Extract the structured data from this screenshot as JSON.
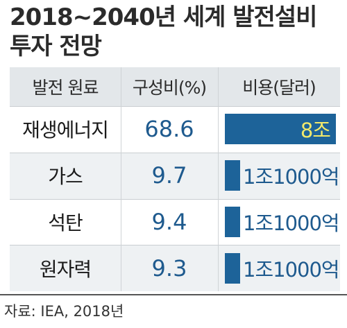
{
  "title": {
    "line1": "2018~2040년 세계 발전설비",
    "line2": "투자 전망"
  },
  "source": "자료: IEA, 2018년",
  "colors": {
    "bar": "#1d6399",
    "header_bg": "#e3e7ea",
    "band_bg": "#eef1f3",
    "value_text": "#1e5a8e",
    "inside_label": "#f2e96b"
  },
  "chart_data": {
    "type": "table",
    "columns": [
      "발전 원료",
      "구성비(%)",
      "비용(달러)"
    ],
    "rows": [
      {
        "fuel": "재생에너지",
        "share_pct": "68.6",
        "cost": "8조",
        "cost_value": 8.0
      },
      {
        "fuel": "가스",
        "share_pct": "9.7",
        "cost": "1조1000억",
        "cost_value": 1.1
      },
      {
        "fuel": "석탄",
        "share_pct": "9.4",
        "cost": "1조1000억",
        "cost_value": 1.1
      },
      {
        "fuel": "원자력",
        "share_pct": "9.3",
        "cost": "1조1000억",
        "cost_value": 1.1
      }
    ],
    "cost_max": 8.0
  }
}
